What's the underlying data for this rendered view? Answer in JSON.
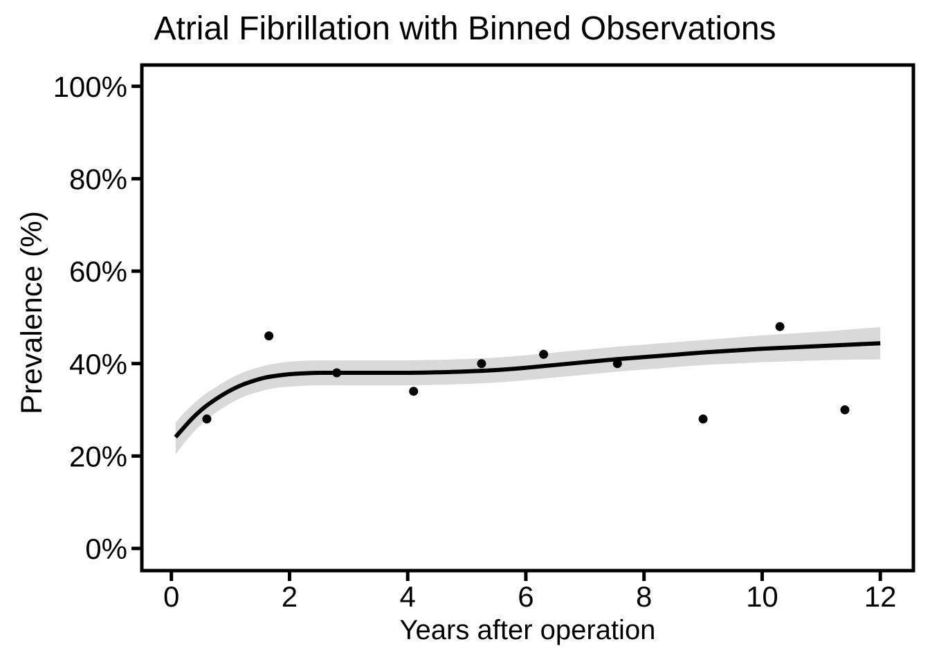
{
  "chart_data": {
    "type": "scatter",
    "title": "Atrial Fibrillation with Binned Observations",
    "xlabel": "Years after operation",
    "ylabel": "Prevalence (%)",
    "xlim": [
      -0.5,
      12.56
    ],
    "ylim": [
      -4.8,
      104.6
    ],
    "grid": false,
    "legend": false,
    "x_ticks": [
      0,
      2,
      4,
      6,
      8,
      10,
      12
    ],
    "x_tick_labels": [
      "0",
      "2",
      "4",
      "6",
      "8",
      "10",
      "12"
    ],
    "y_ticks": [
      0,
      20,
      40,
      60,
      80,
      100
    ],
    "y_tick_labels": [
      "0%",
      "20%",
      "40%",
      "60%",
      "80%",
      "100%"
    ],
    "points": {
      "name": "binned observations",
      "color": "#000000",
      "radius": 6.5,
      "xy": [
        [
          0.6,
          28
        ],
        [
          1.65,
          46
        ],
        [
          2.8,
          38
        ],
        [
          4.1,
          34
        ],
        [
          5.25,
          40
        ],
        [
          6.3,
          42
        ],
        [
          7.55,
          40
        ],
        [
          9.0,
          28
        ],
        [
          10.3,
          48
        ],
        [
          11.4,
          30
        ]
      ]
    },
    "smooth_line": {
      "name": "fitted prevalence curve",
      "color": "#000000",
      "stroke_width": 6,
      "xy": [
        [
          0.07,
          24.1
        ],
        [
          0.2,
          26.0
        ],
        [
          0.35,
          28.1
        ],
        [
          0.5,
          29.9
        ],
        [
          0.65,
          31.4
        ],
        [
          0.8,
          32.7
        ],
        [
          1.0,
          34.2
        ],
        [
          1.2,
          35.4
        ],
        [
          1.4,
          36.3
        ],
        [
          1.6,
          37.0
        ],
        [
          1.8,
          37.4
        ],
        [
          2.0,
          37.7
        ],
        [
          2.25,
          37.9
        ],
        [
          2.5,
          38.0
        ],
        [
          3.0,
          38.0
        ],
        [
          3.5,
          38.0
        ],
        [
          4.0,
          38.0
        ],
        [
          4.5,
          38.1
        ],
        [
          5.0,
          38.3
        ],
        [
          5.5,
          38.6
        ],
        [
          6.0,
          39.1
        ],
        [
          6.5,
          39.7
        ],
        [
          7.0,
          40.3
        ],
        [
          7.5,
          40.9
        ],
        [
          8.0,
          41.4
        ],
        [
          8.5,
          41.9
        ],
        [
          9.0,
          42.4
        ],
        [
          9.5,
          42.8
        ],
        [
          10.0,
          43.2
        ],
        [
          10.5,
          43.5
        ],
        [
          11.0,
          43.8
        ],
        [
          11.5,
          44.1
        ],
        [
          12.0,
          44.4
        ]
      ]
    },
    "confidence_band": {
      "name": "confidence band",
      "color": "#d9d9d9",
      "t_lo_hi": [
        [
          0.07,
          20.3,
          27.2
        ],
        [
          0.2,
          22.5,
          29.1
        ],
        [
          0.35,
          24.8,
          31.0
        ],
        [
          0.5,
          26.8,
          32.7
        ],
        [
          0.65,
          28.4,
          34.1
        ],
        [
          0.8,
          29.8,
          35.3
        ],
        [
          1.0,
          31.4,
          36.8
        ],
        [
          1.2,
          32.7,
          38.0
        ],
        [
          1.4,
          33.6,
          38.9
        ],
        [
          1.6,
          34.3,
          39.6
        ],
        [
          1.8,
          34.8,
          40.1
        ],
        [
          2.0,
          35.0,
          40.4
        ],
        [
          2.25,
          35.2,
          40.6
        ],
        [
          2.5,
          35.3,
          40.7
        ],
        [
          3.0,
          35.3,
          40.7
        ],
        [
          3.5,
          35.3,
          40.7
        ],
        [
          4.0,
          35.3,
          40.7
        ],
        [
          4.5,
          35.4,
          40.8
        ],
        [
          5.0,
          35.6,
          41.0
        ],
        [
          5.5,
          35.9,
          41.3
        ],
        [
          6.0,
          36.4,
          41.8
        ],
        [
          6.5,
          37.0,
          42.4
        ],
        [
          7.0,
          37.6,
          43.0
        ],
        [
          7.5,
          38.2,
          43.6
        ],
        [
          8.0,
          38.7,
          44.1
        ],
        [
          8.5,
          39.2,
          44.6
        ],
        [
          9.0,
          39.7,
          45.1
        ],
        [
          9.5,
          40.0,
          45.6
        ],
        [
          10.0,
          40.3,
          46.1
        ],
        [
          10.5,
          40.5,
          46.5
        ],
        [
          11.0,
          40.7,
          46.9
        ],
        [
          11.5,
          40.85,
          47.4
        ],
        [
          12.0,
          40.9,
          47.9
        ]
      ]
    },
    "colors": {
      "axis": "#000000",
      "text": "#000000",
      "band": "#d9d9d9",
      "background": "#ffffff"
    },
    "style": {
      "panel_border_width": 5,
      "tick_length": 15,
      "tick_width": 5
    }
  }
}
